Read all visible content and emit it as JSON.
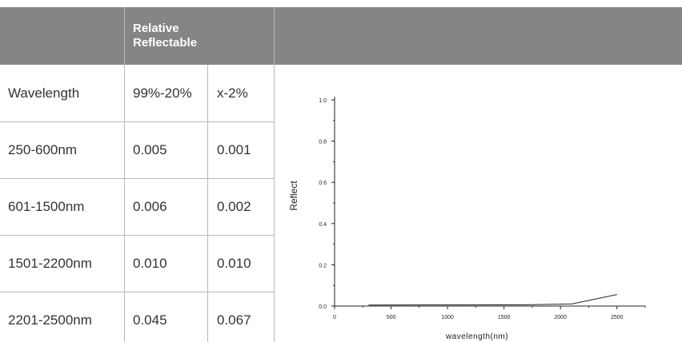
{
  "table": {
    "header": {
      "line1": "Relative",
      "line2": "Reflectable"
    },
    "rows": [
      {
        "label": "Wavelength",
        "c1": "99%-20%",
        "c2": "x-2%"
      },
      {
        "label": "250-600nm",
        "c1": "0.005",
        "c2": "0.001"
      },
      {
        "label": "601-1500nm",
        "c1": "0.006",
        "c2": "0.002"
      },
      {
        "label": "1501-2200nm",
        "c1": "0.010",
        "c2": "0.010"
      },
      {
        "label": "2201-2500nm",
        "c1": "0.045",
        "c2": "0.067"
      }
    ]
  },
  "colors": {
    "header_bg": "#858585",
    "grid": "#b8b8b8",
    "text": "#333333"
  },
  "chart_data": {
    "type": "line",
    "xlabel": "wavelength(nm)",
    "ylabel": "Reflect",
    "xlim": [
      0,
      2750
    ],
    "ylim": [
      0,
      1.0
    ],
    "xticks": [
      0,
      500,
      1000,
      1500,
      2000,
      2500
    ],
    "yticks": [
      0.0,
      0.2,
      0.4,
      0.6,
      0.8,
      1.0
    ],
    "xtick_labels": [
      "0",
      "500",
      "1000",
      "1500",
      "2000",
      "2500"
    ],
    "ytick_labels": [
      "0.0",
      "0.2",
      "0.4",
      "0.6",
      "0.8",
      "1.0"
    ],
    "series": [
      {
        "x": [
          300,
          1650,
          2100,
          2500
        ],
        "y": [
          0.005,
          0.006,
          0.01,
          0.056
        ]
      }
    ]
  }
}
